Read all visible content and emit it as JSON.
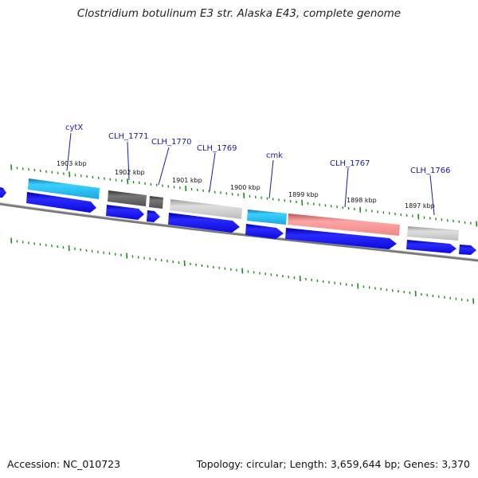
{
  "title": "Clostridium botulinum E3 str. Alaska E43, complete genome",
  "footer": {
    "accession": "Accession: NC_010723",
    "summary": "Topology: circular; Length: 3,659,644 bp; Genes: 3,370"
  },
  "tick_labels": [
    "1903 kbp",
    "1902 kbp",
    "1901 kbp",
    "1900 kbp",
    "1899 kbp",
    "1898 kbp",
    "1897 kbp"
  ],
  "gene_labels": [
    "cytX",
    "CLH_1771",
    "CLH_1770",
    "CLH_1769",
    "cmk",
    "CLH_1767",
    "CLH_1766"
  ],
  "colors": {
    "backbone": "#7a7a7a",
    "cds": "#1010e0",
    "tick": "#1e8a1e",
    "label": "#1a1aa6",
    "feature_cyan": "#22b8e8",
    "feature_dark": "#555555",
    "feature_light": "#c4c4c4",
    "feature_pink": "#ee8c8c"
  }
}
